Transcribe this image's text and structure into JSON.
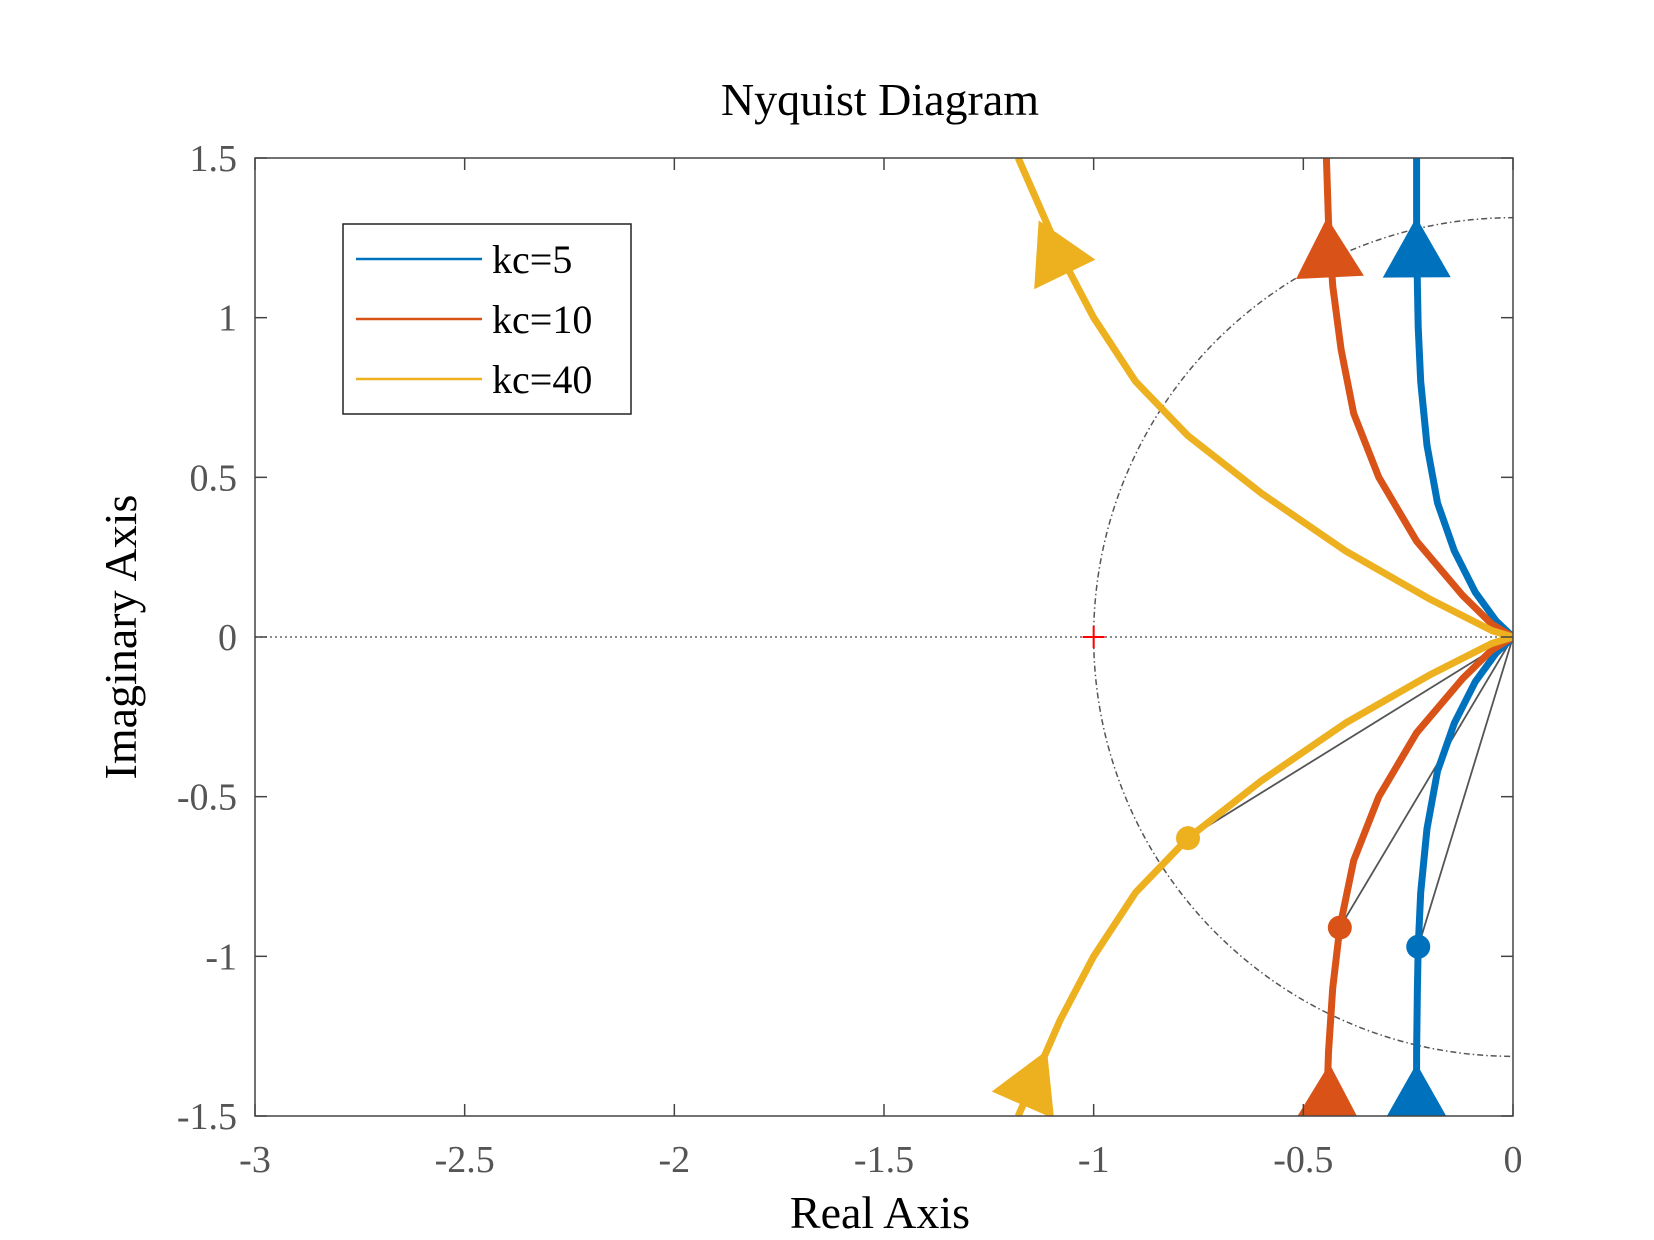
{
  "chart_data": {
    "type": "line",
    "title": "Nyquist Diagram",
    "xlabel": "Real Axis",
    "ylabel": "Imaginary Axis",
    "xlim": [
      -3,
      0
    ],
    "ylim": [
      -1.5,
      1.5
    ],
    "xticks": [
      -3,
      -2.5,
      -2,
      -1.5,
      -1,
      -0.5,
      0
    ],
    "yticks": [
      -1.5,
      -1,
      -0.5,
      0,
      0.5,
      1,
      1.5
    ],
    "xtick_labels": [
      "-3",
      "-2.5",
      "-2",
      "-1.5",
      "-1",
      "-0.5",
      "0"
    ],
    "ytick_labels": [
      "-1.5",
      "-1",
      "-0.5",
      "0",
      "0.5",
      "1",
      "1.5"
    ],
    "grid": false,
    "legend_position": "top-left",
    "critical_point": {
      "x": -1,
      "y": 0,
      "color": "#ff0000"
    },
    "unit_circle": true,
    "series": [
      {
        "name": "kc=5",
        "color": "#0072BD",
        "lower_branch": [
          [
            -0.23,
            -1.5
          ],
          [
            -0.23,
            -1.3
          ],
          [
            -0.228,
            -1.1
          ],
          [
            -0.226,
            -0.97
          ],
          [
            -0.22,
            -0.8
          ],
          [
            -0.205,
            -0.6
          ],
          [
            -0.18,
            -0.42
          ],
          [
            -0.14,
            -0.27
          ],
          [
            -0.09,
            -0.14
          ],
          [
            -0.04,
            -0.05
          ],
          [
            0,
            0
          ]
        ],
        "upper_branch": [
          [
            0,
            0
          ],
          [
            -0.04,
            0.05
          ],
          [
            -0.09,
            0.14
          ],
          [
            -0.14,
            0.27
          ],
          [
            -0.18,
            0.42
          ],
          [
            -0.205,
            0.6
          ],
          [
            -0.22,
            0.8
          ],
          [
            -0.226,
            0.97
          ],
          [
            -0.228,
            1.1
          ],
          [
            -0.23,
            1.3
          ],
          [
            -0.23,
            1.5
          ]
        ],
        "crossover_point": [
          -0.226,
          -0.97
        ],
        "arrow_points": [
          [
            -0.23,
            -1.43
          ],
          [
            -0.23,
            1.22
          ]
        ]
      },
      {
        "name": "kc=10",
        "color": "#D95319",
        "lower_branch": [
          [
            -0.445,
            -1.5
          ],
          [
            -0.44,
            -1.3
          ],
          [
            -0.43,
            -1.1
          ],
          [
            -0.413,
            -0.91
          ],
          [
            -0.38,
            -0.7
          ],
          [
            -0.32,
            -0.5
          ],
          [
            -0.23,
            -0.3
          ],
          [
            -0.12,
            -0.13
          ],
          [
            -0.05,
            -0.04
          ],
          [
            0,
            0
          ]
        ],
        "upper_branch": [
          [
            0,
            0
          ],
          [
            -0.05,
            0.04
          ],
          [
            -0.12,
            0.13
          ],
          [
            -0.23,
            0.3
          ],
          [
            -0.32,
            0.5
          ],
          [
            -0.38,
            0.7
          ],
          [
            -0.41,
            0.9
          ],
          [
            -0.43,
            1.1
          ],
          [
            -0.44,
            1.3
          ],
          [
            -0.445,
            1.5
          ]
        ],
        "crossover_point": [
          -0.413,
          -0.91
        ],
        "arrow_points": [
          [
            -0.44,
            -1.43
          ],
          [
            -0.44,
            1.22
          ]
        ]
      },
      {
        "name": "kc=40",
        "color": "#EDB120",
        "lower_branch": [
          [
            -1.18,
            -1.5
          ],
          [
            -1.14,
            -1.38
          ],
          [
            -1.08,
            -1.2
          ],
          [
            -1.0,
            -1.0
          ],
          [
            -0.9,
            -0.8
          ],
          [
            -0.775,
            -0.63
          ],
          [
            -0.6,
            -0.45
          ],
          [
            -0.4,
            -0.27
          ],
          [
            -0.2,
            -0.12
          ],
          [
            -0.05,
            -0.02
          ],
          [
            0,
            0
          ]
        ],
        "upper_branch": [
          [
            0,
            0
          ],
          [
            -0.05,
            0.02
          ],
          [
            -0.2,
            0.12
          ],
          [
            -0.4,
            0.27
          ],
          [
            -0.6,
            0.45
          ],
          [
            -0.775,
            0.63
          ],
          [
            -0.9,
            0.8
          ],
          [
            -1.0,
            1.0
          ],
          [
            -1.08,
            1.2
          ],
          [
            -1.14,
            1.38
          ],
          [
            -1.18,
            1.5
          ]
        ],
        "crossover_point": [
          -0.775,
          -0.63
        ],
        "arrow_points": [
          [
            -1.14,
            -1.38
          ],
          [
            -1.1,
            1.22
          ]
        ]
      }
    ]
  }
}
